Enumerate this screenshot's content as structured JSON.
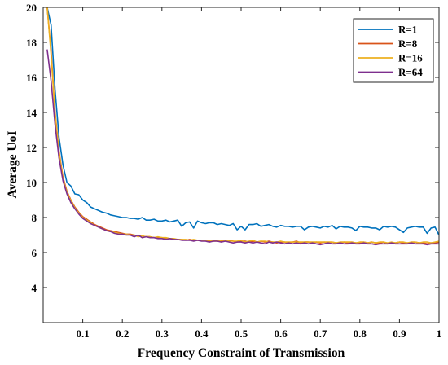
{
  "chart_data": {
    "type": "line",
    "title": "",
    "xlabel": "Frequency Constraint of Transmission",
    "ylabel": "Average UoI",
    "xlim": [
      0,
      1
    ],
    "ylim": [
      2,
      20
    ],
    "xticks": [
      0.1,
      0.2,
      0.3,
      0.4,
      0.5,
      0.6,
      0.7,
      0.8,
      0.9,
      1
    ],
    "xtick_labels": [
      "0.1",
      "0.2",
      "0.3",
      "0.4",
      "0.5",
      "0.6",
      "0.7",
      "0.8",
      "0.9",
      "1"
    ],
    "yticks": [
      4,
      6,
      8,
      10,
      12,
      14,
      16,
      18,
      20
    ],
    "ytick_labels": [
      "4",
      "6",
      "8",
      "10",
      "12",
      "14",
      "16",
      "18",
      "20"
    ],
    "grid": false,
    "legend_position": "top-right",
    "x": [
      0.01,
      0.02,
      0.03,
      0.04,
      0.05,
      0.06,
      0.07,
      0.08,
      0.09,
      0.1,
      0.11,
      0.12,
      0.13,
      0.14,
      0.15,
      0.16,
      0.17,
      0.18,
      0.19,
      0.2,
      0.21,
      0.22,
      0.23,
      0.24,
      0.25,
      0.26,
      0.27,
      0.28,
      0.29,
      0.3,
      0.31,
      0.32,
      0.33,
      0.34,
      0.35,
      0.36,
      0.37,
      0.38,
      0.39,
      0.4,
      0.41,
      0.42,
      0.43,
      0.44,
      0.45,
      0.46,
      0.47,
      0.48,
      0.49,
      0.5,
      0.51,
      0.52,
      0.53,
      0.54,
      0.55,
      0.56,
      0.57,
      0.58,
      0.59,
      0.6,
      0.61,
      0.62,
      0.63,
      0.64,
      0.65,
      0.66,
      0.67,
      0.68,
      0.69,
      0.7,
      0.71,
      0.72,
      0.73,
      0.74,
      0.75,
      0.76,
      0.77,
      0.78,
      0.79,
      0.8,
      0.81,
      0.82,
      0.83,
      0.84,
      0.85,
      0.86,
      0.87,
      0.88,
      0.89,
      0.9,
      0.91,
      0.92,
      0.93,
      0.94,
      0.95,
      0.96,
      0.97,
      0.98,
      0.99,
      1.0
    ],
    "series": [
      {
        "name": "R=1",
        "color": "#0072BD",
        "values": [
          20.0,
          19.0,
          15.3,
          12.6,
          11.0,
          10.0,
          9.8,
          9.35,
          9.3,
          9.0,
          8.85,
          8.6,
          8.5,
          8.4,
          8.3,
          8.25,
          8.15,
          8.1,
          8.05,
          8.0,
          8.0,
          7.95,
          7.95,
          7.9,
          8.0,
          7.85,
          7.85,
          7.9,
          7.8,
          7.8,
          7.85,
          7.75,
          7.8,
          7.85,
          7.5,
          7.7,
          7.75,
          7.4,
          7.8,
          7.7,
          7.65,
          7.7,
          7.7,
          7.6,
          7.65,
          7.6,
          7.55,
          7.65,
          7.3,
          7.5,
          7.3,
          7.6,
          7.6,
          7.65,
          7.5,
          7.55,
          7.6,
          7.5,
          7.45,
          7.55,
          7.5,
          7.5,
          7.45,
          7.5,
          7.5,
          7.3,
          7.45,
          7.5,
          7.45,
          7.4,
          7.5,
          7.45,
          7.55,
          7.35,
          7.5,
          7.45,
          7.45,
          7.4,
          7.25,
          7.5,
          7.45,
          7.45,
          7.4,
          7.4,
          7.3,
          7.5,
          7.45,
          7.5,
          7.45,
          7.3,
          7.15,
          7.4,
          7.45,
          7.5,
          7.45,
          7.45,
          7.1,
          7.4,
          7.45,
          7.0
        ]
      },
      {
        "name": "R=8",
        "color": "#D95319",
        "values": [
          20.0,
          17.5,
          14.0,
          11.8,
          10.3,
          9.5,
          9.0,
          8.6,
          8.3,
          8.05,
          7.9,
          7.75,
          7.6,
          7.5,
          7.4,
          7.3,
          7.25,
          7.2,
          7.15,
          7.1,
          7.05,
          7.05,
          7.0,
          6.95,
          6.95,
          6.9,
          6.9,
          6.85,
          6.85,
          6.85,
          6.8,
          6.8,
          6.75,
          6.75,
          6.75,
          6.7,
          6.75,
          6.7,
          6.7,
          6.7,
          6.7,
          6.65,
          6.65,
          6.7,
          6.65,
          6.65,
          6.7,
          6.65,
          6.6,
          6.65,
          6.65,
          6.6,
          6.65,
          6.6,
          6.65,
          6.6,
          6.65,
          6.6,
          6.55,
          6.6,
          6.6,
          6.55,
          6.6,
          6.65,
          6.55,
          6.6,
          6.6,
          6.55,
          6.6,
          6.55,
          6.6,
          6.55,
          6.6,
          6.55,
          6.55,
          6.6,
          6.55,
          6.6,
          6.55,
          6.55,
          6.6,
          6.55,
          6.6,
          6.55,
          6.55,
          6.6,
          6.5,
          6.55,
          6.55,
          6.6,
          6.55,
          6.55,
          6.55,
          6.6,
          6.55,
          6.55,
          6.5,
          6.55,
          6.55,
          6.6
        ]
      },
      {
        "name": "R=16",
        "color": "#EDB120",
        "values": [
          20.0,
          17.3,
          13.9,
          11.7,
          10.2,
          9.45,
          8.95,
          8.55,
          8.25,
          8.0,
          7.85,
          7.7,
          7.55,
          7.45,
          7.35,
          7.25,
          7.2,
          7.15,
          7.1,
          7.05,
          7.05,
          7.0,
          7.0,
          6.9,
          6.95,
          6.9,
          6.9,
          6.85,
          6.9,
          6.85,
          6.85,
          6.8,
          6.8,
          6.75,
          6.75,
          6.75,
          6.7,
          6.75,
          6.7,
          6.7,
          6.7,
          6.7,
          6.65,
          6.65,
          6.7,
          6.7,
          6.65,
          6.65,
          6.65,
          6.7,
          6.6,
          6.65,
          6.7,
          6.6,
          6.65,
          6.65,
          6.6,
          6.6,
          6.6,
          6.65,
          6.6,
          6.6,
          6.6,
          6.6,
          6.6,
          6.6,
          6.6,
          6.6,
          6.6,
          6.6,
          6.6,
          6.6,
          6.6,
          6.55,
          6.6,
          6.6,
          6.6,
          6.6,
          6.55,
          6.6,
          6.6,
          6.55,
          6.6,
          6.55,
          6.6,
          6.6,
          6.55,
          6.6,
          6.55,
          6.6,
          6.6,
          6.55,
          6.6,
          6.6,
          6.55,
          6.6,
          6.6,
          6.55,
          6.6,
          6.65
        ]
      },
      {
        "name": "R=64",
        "color": "#7E2F8E",
        "values": [
          17.6,
          15.8,
          13.3,
          11.4,
          10.1,
          9.35,
          8.85,
          8.5,
          8.2,
          7.95,
          7.8,
          7.65,
          7.55,
          7.45,
          7.35,
          7.25,
          7.2,
          7.1,
          7.05,
          7.05,
          7.0,
          7.0,
          6.9,
          7.0,
          6.85,
          6.9,
          6.85,
          6.85,
          6.8,
          6.8,
          6.75,
          6.8,
          6.75,
          6.75,
          6.7,
          6.7,
          6.7,
          6.65,
          6.7,
          6.65,
          6.65,
          6.6,
          6.65,
          6.65,
          6.6,
          6.65,
          6.6,
          6.55,
          6.6,
          6.6,
          6.55,
          6.6,
          6.55,
          6.6,
          6.55,
          6.5,
          6.6,
          6.55,
          6.6,
          6.55,
          6.5,
          6.55,
          6.5,
          6.55,
          6.5,
          6.55,
          6.5,
          6.55,
          6.5,
          6.45,
          6.5,
          6.55,
          6.5,
          6.5,
          6.55,
          6.5,
          6.5,
          6.55,
          6.5,
          6.5,
          6.55,
          6.5,
          6.5,
          6.45,
          6.5,
          6.5,
          6.5,
          6.55,
          6.5,
          6.5,
          6.5,
          6.5,
          6.55,
          6.5,
          6.5,
          6.5,
          6.45,
          6.5,
          6.5,
          6.5
        ]
      }
    ]
  }
}
